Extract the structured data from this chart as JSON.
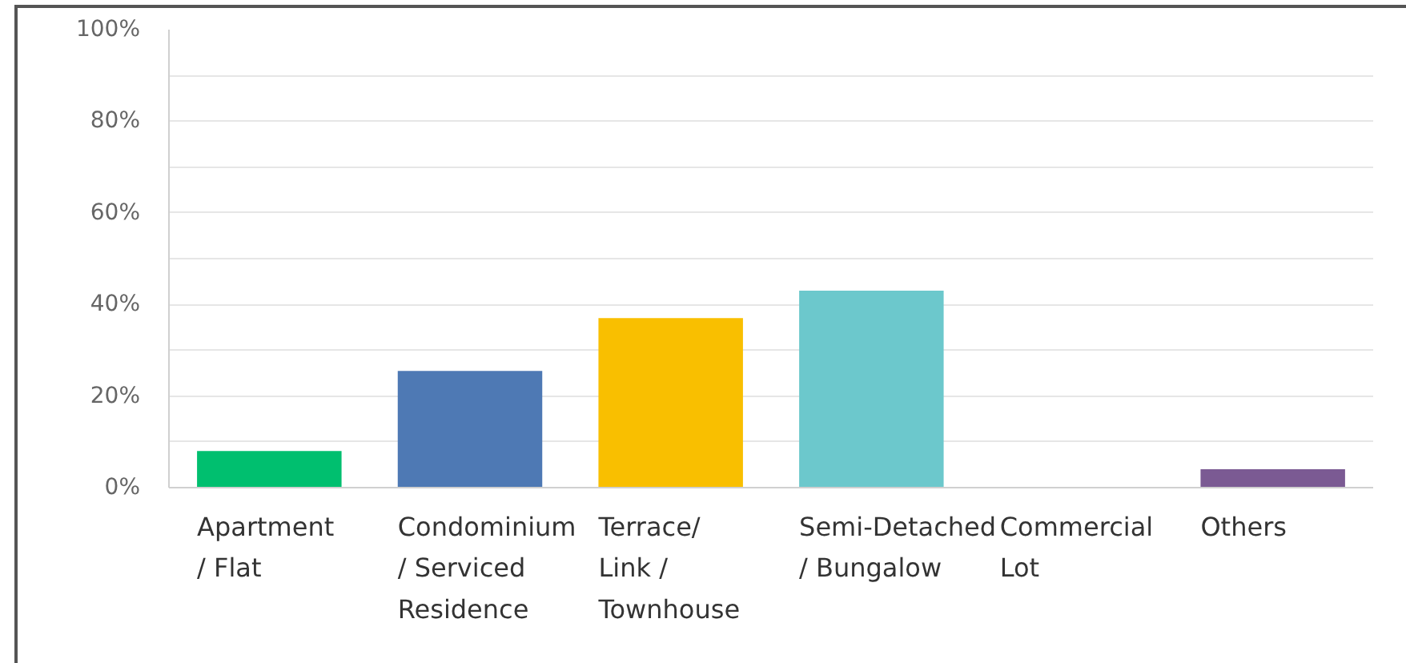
{
  "chart_data": {
    "type": "bar",
    "categories": [
      "Apartment\n/ Flat",
      "Condominium\n/ Serviced\nResidence",
      "Terrace/\nLink /\nTownhouse",
      "Semi-Detached\n/ Bungalow",
      "Commercial\nLot",
      "Others"
    ],
    "values": [
      8,
      25.5,
      37,
      43,
      0,
      4
    ],
    "colors": [
      "#00bf6f",
      "#4e79b4",
      "#f9bf00",
      "#6cc8cc",
      "#e8575a",
      "#7b5a93"
    ],
    "ylim": [
      0,
      100
    ],
    "yticks": [
      {
        "value": 0,
        "label": "0%"
      },
      {
        "value": 10,
        "label": null
      },
      {
        "value": 20,
        "label": "20%"
      },
      {
        "value": 30,
        "label": null
      },
      {
        "value": 40,
        "label": "40%"
      },
      {
        "value": 50,
        "label": null
      },
      {
        "value": 60,
        "label": "60%"
      },
      {
        "value": 70,
        "label": null
      },
      {
        "value": 80,
        "label": "80%"
      },
      {
        "value": 90,
        "label": null
      },
      {
        "value": 100,
        "label": "100%"
      }
    ],
    "grid": "y"
  }
}
